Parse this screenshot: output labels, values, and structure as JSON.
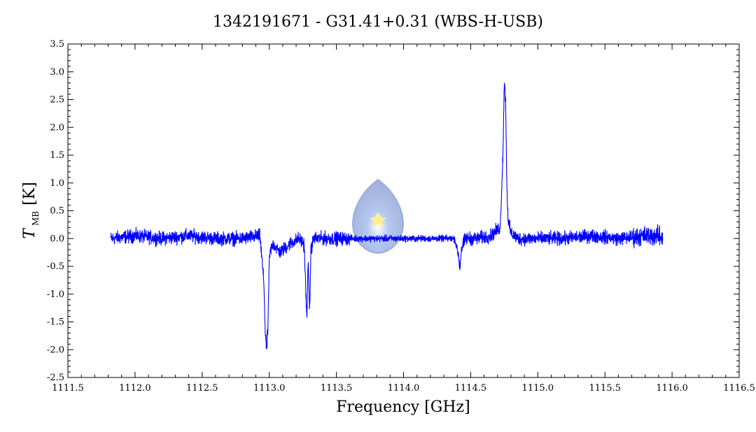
{
  "chart_data": {
    "type": "line",
    "title": "1342191671 - G31.41+0.31 (WBS-H-USB)",
    "xlabel": "Frequency [GHz]",
    "ylabel_main": "T",
    "ylabel_sub": "MB",
    "ylabel_unit": "[K]",
    "xlim": [
      1111.5,
      1116.5
    ],
    "ylim": [
      -2.5,
      3.5
    ],
    "x_ticks": [
      1111.5,
      1112.0,
      1112.5,
      1113.0,
      1113.5,
      1114.0,
      1114.5,
      1115.0,
      1115.5,
      1116.0,
      1116.5
    ],
    "x_tick_labels": [
      "1111.5",
      "1112.0",
      "1112.5",
      "1113.0",
      "1113.5",
      "1114.0",
      "1114.5",
      "1115.0",
      "1115.5",
      "1116.0",
      "1116.5"
    ],
    "y_ticks": [
      -2.5,
      -2.0,
      -1.5,
      -1.0,
      -0.5,
      0.0,
      0.5,
      1.0,
      1.5,
      2.0,
      2.5,
      3.0,
      3.5
    ],
    "y_tick_labels": [
      "-2.5",
      "-2.0",
      "-1.5",
      "-1.0",
      "-0.5",
      "0.0",
      "0.5",
      "1.0",
      "1.5",
      "2.0",
      "2.5",
      "3.0",
      "3.5"
    ],
    "grid": false,
    "line_color": "#0000ff",
    "series": [
      {
        "x": [
          1111.82,
          1112.0,
          1112.2,
          1112.4,
          1112.6,
          1112.8,
          1112.93,
          1112.96,
          1112.97,
          1112.98,
          1112.99,
          1113.0,
          1113.01,
          1113.03,
          1113.08,
          1113.15,
          1113.22,
          1113.26,
          1113.28,
          1113.29,
          1113.3,
          1113.31,
          1113.33,
          1113.4,
          1113.6,
          1113.8,
          1114.0,
          1114.2,
          1114.38,
          1114.41,
          1114.42,
          1114.43,
          1114.46,
          1114.55,
          1114.65,
          1114.72,
          1114.74,
          1114.75,
          1114.76,
          1114.77,
          1114.78,
          1114.8,
          1114.85,
          1115.0,
          1115.2,
          1115.4,
          1115.6,
          1115.8,
          1115.9,
          1115.93
        ],
        "y": [
          0.0,
          0.05,
          0.0,
          0.05,
          0.0,
          0.0,
          0.05,
          -0.8,
          -1.7,
          -2.0,
          -1.6,
          -0.4,
          -0.2,
          -0.1,
          -0.25,
          -0.1,
          0.0,
          -0.1,
          -1.5,
          -0.3,
          -1.4,
          -0.2,
          0.0,
          0.0,
          0.0,
          0.0,
          0.0,
          0.0,
          0.0,
          -0.3,
          -0.55,
          -0.2,
          0.0,
          0.0,
          0.05,
          0.2,
          1.5,
          2.8,
          2.5,
          0.9,
          0.3,
          0.1,
          0.0,
          0.0,
          0.0,
          0.05,
          0.0,
          0.05,
          0.05,
          0.0
        ]
      }
    ]
  }
}
